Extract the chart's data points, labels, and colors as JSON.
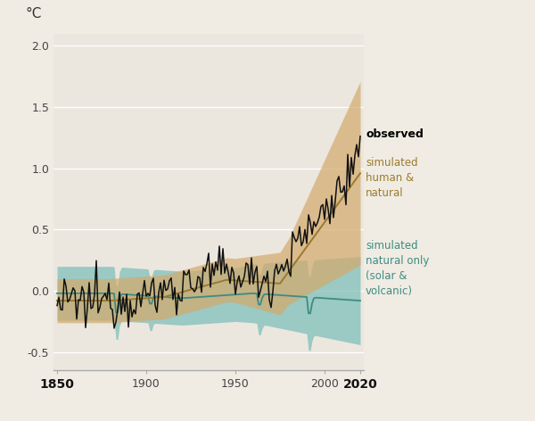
{
  "ylabel": "°C",
  "xlim": [
    1848,
    2022
  ],
  "ylim": [
    -0.65,
    2.1
  ],
  "xticks": [
    1850,
    1900,
    1950,
    2000,
    2020
  ],
  "yticks": [
    -0.5,
    0.0,
    0.5,
    1.0,
    1.5,
    2.0
  ],
  "bg_color": "#f0ece3",
  "plot_bg_color": "#ebe7df",
  "observed_color": "#111111",
  "human_natural_color": "#9b7a2e",
  "natural_only_color": "#3d8c82",
  "human_natural_fill": "#d4a96a",
  "natural_only_fill": "#7abdb8",
  "human_natural_fill_alpha": 0.7,
  "natural_only_fill_alpha": 0.7,
  "label_observed": "observed",
  "label_human_natural": "simulated\nhuman &\nnatural",
  "label_natural_only": "simulated\nnatural only\n(solar &\nvolcanic)"
}
